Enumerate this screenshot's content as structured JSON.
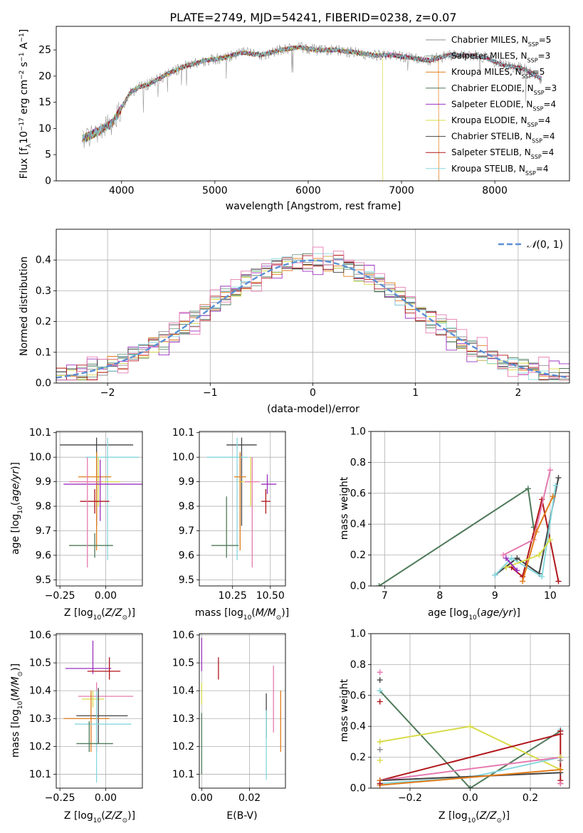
{
  "figure_title": "PLATE=2749, MJD=54241, FIBERID=0238, z=0.07",
  "colors": {
    "Chabrier MILES": "#7a9f88",
    "Salpeter MILES": "#8e8e8e",
    "Kroupa MILES": "#e07b1a",
    "Chabrier ELODIE": "#4f7a5a",
    "Salpeter ELODIE": "#9b30c0",
    "Kroupa ELODIE": "#d8dc4a",
    "Chabrier STELIB": "#444444",
    "Salpeter STELIB": "#b0161b",
    "Kroupa STELIB": "#86d8de",
    "pink": "#e57ab0",
    "normal_curve": "#5b8fd6"
  },
  "chart_data": [
    {
      "type": "line",
      "id": "spectrum",
      "title": "",
      "xlabel": "wavelength [Angstrom, rest frame]",
      "ylabel": "Flux [f_λ10^-17 erg cm^-2 s^-1 A^-1]",
      "xlim": [
        3300,
        8800
      ],
      "ylim": [
        0,
        29.5
      ],
      "xticks": [
        4000,
        5000,
        6000,
        7000,
        8000
      ],
      "yticks": [
        0,
        5,
        10,
        15,
        20,
        25
      ],
      "grid": false,
      "legend_position": "top-right",
      "series_continuum": {
        "x": [
          3580,
          3700,
          3800,
          3900,
          4000,
          4100,
          4200,
          4300,
          4500,
          4700,
          4900,
          5100,
          5300,
          5500,
          5700,
          5900,
          6100,
          6300,
          6500,
          6700,
          6900,
          7100,
          7300,
          7500,
          7700,
          7900,
          8100,
          8300,
          8500
        ],
        "y": [
          8,
          9,
          10,
          11,
          14,
          17,
          18,
          18.5,
          20.5,
          22,
          23,
          23.5,
          24.5,
          24,
          25,
          25.5,
          25,
          25,
          24.5,
          24,
          24,
          23.5,
          23,
          24,
          24,
          23.5,
          22,
          21.5,
          19.5
        ]
      },
      "series": [
        {
          "name": "Chabrier MILES, N_SSP=5"
        },
        {
          "name": "Salpeter MILES, N_SSP=3"
        },
        {
          "name": "Kroupa MILES, N_SSP=5"
        },
        {
          "name": "Chabrier ELODIE, N_SSP=3"
        },
        {
          "name": "Salpeter ELODIE, N_SSP=4"
        },
        {
          "name": "Kroupa ELODIE, N_SSP=4"
        },
        {
          "name": "Chabrier STELIB, N_SSP=4"
        },
        {
          "name": "Salpeter STELIB, N_SSP=4"
        },
        {
          "name": "Kroupa STELIB, N_SSP=4"
        }
      ]
    },
    {
      "type": "line",
      "id": "residual_hist",
      "xlabel": "(data-model)/error",
      "ylabel": "Normed distribution",
      "xlim": [
        -2.5,
        2.5
      ],
      "ylim": [
        0,
        0.5
      ],
      "xticks": [
        -2,
        -1,
        0,
        1,
        2
      ],
      "yticks": [
        0.0,
        0.1,
        0.2,
        0.3,
        0.4
      ],
      "grid": true,
      "legend_position": "top-right",
      "legend": "N(0,1)",
      "normal": {
        "mean": 0,
        "sigma": 1
      }
    },
    {
      "type": "scatter",
      "id": "z_vs_age",
      "xlabel": "Z [log10(Z/Z_sun)]",
      "ylabel": "age [log10(age/yr)]",
      "xlim": [
        -0.27,
        0.2
      ],
      "ylim": [
        9.475,
        10.105
      ],
      "xticks": [
        -0.25,
        0.0
      ],
      "yticks": [
        9.5,
        9.6,
        9.7,
        9.8,
        9.9,
        10.0,
        10.1
      ],
      "grid": true,
      "points": [
        {
          "color": "Chabrier STELIB",
          "x": -0.05,
          "xerr": [
            0.2,
            0.2
          ],
          "y": 10.05,
          "yerr": [
            0.33,
            0.03
          ]
        },
        {
          "color": "Kroupa STELIB",
          "x": 0.01,
          "xerr": [
            0.12,
            0.17
          ],
          "y": 10.0,
          "yerr": [
            0.42,
            0.08
          ]
        },
        {
          "color": "Kroupa ELODIE",
          "x": -0.04,
          "xerr": [
            0.12,
            0.12
          ],
          "y": 9.9,
          "yerr": [
            0.1,
            0.1
          ]
        },
        {
          "color": "Kroupa MILES",
          "x": -0.05,
          "xerr": [
            0.1,
            0.08
          ],
          "y": 9.92,
          "yerr": [
            0.3,
            0.1
          ]
        },
        {
          "color": "Salpeter ELODIE",
          "x": -0.03,
          "xerr": [
            0.2,
            0.23
          ],
          "y": 9.89,
          "yerr": [
            0.15,
            0.1
          ]
        },
        {
          "color": "Salpeter STELIB",
          "x": -0.06,
          "xerr": [
            0.08,
            0.08
          ],
          "y": 9.82,
          "yerr": [
            0.05,
            0.05
          ]
        },
        {
          "color": "Chabrier ELODIE",
          "x": -0.06,
          "xerr": [
            0.14,
            0.1
          ],
          "y": 9.64,
          "yerr": [
            0.05,
            0.05
          ]
        },
        {
          "color": "pink",
          "x": -0.1,
          "xerr": [
            0.1,
            0.08
          ],
          "y": 9.9,
          "yerr": [
            0.35,
            0.1
          ]
        }
      ]
    },
    {
      "type": "scatter",
      "id": "mass_vs_age",
      "xlabel": "mass [log10(M/M_sun)]",
      "ylabel": "",
      "xlim": [
        10.03,
        10.6
      ],
      "ylim": [
        9.475,
        10.105
      ],
      "xticks": [
        10.25,
        10.5
      ],
      "yticks": [
        9.5,
        9.6,
        9.7,
        9.8,
        9.9,
        10.0,
        10.1
      ],
      "grid": true,
      "points": [
        {
          "color": "Chabrier STELIB",
          "x": 10.31,
          "xerr": [
            0.1,
            0.1
          ],
          "y": 10.05,
          "yerr": [
            0.33,
            0.03
          ]
        },
        {
          "color": "Kroupa STELIB",
          "x": 10.28,
          "xerr": [
            0.2,
            0.07
          ],
          "y": 10.0,
          "yerr": [
            0.42,
            0.08
          ]
        },
        {
          "color": "Salpeter STELIB",
          "x": 10.47,
          "xerr": [
            0.03,
            0.03
          ],
          "y": 9.82,
          "yerr": [
            0.05,
            0.05
          ]
        },
        {
          "color": "Salpeter ELODIE",
          "x": 10.48,
          "xerr": [
            0.04,
            0.06
          ],
          "y": 9.89,
          "yerr": [
            0.04,
            0.04
          ]
        },
        {
          "color": "Kroupa ELODIE",
          "x": 10.37,
          "xerr": [
            0.08,
            0.04
          ],
          "y": 9.9,
          "yerr": [
            0.1,
            0.1
          ]
        },
        {
          "color": "Chabrier ELODIE",
          "x": 10.21,
          "xerr": [
            0.1,
            0.08
          ],
          "y": 9.64,
          "yerr": [
            0.05,
            0.2
          ]
        },
        {
          "color": "pink",
          "x": 10.38,
          "xerr": [
            0.05,
            0.05
          ],
          "y": 9.9,
          "yerr": [
            0.35,
            0.1
          ]
        },
        {
          "color": "Kroupa MILES",
          "x": 10.3,
          "xerr": [
            0.04,
            0.04
          ],
          "y": 9.92,
          "yerr": [
            0.3,
            0.1
          ]
        }
      ]
    },
    {
      "type": "line",
      "id": "age_vs_massweight",
      "xlabel": "age [log10(age/yr)]",
      "ylabel": "mass weight",
      "xlim": [
        6.75,
        10.35
      ],
      "ylim": [
        0.0,
        1.0
      ],
      "xticks": [
        7,
        8,
        9,
        10
      ],
      "yticks": [
        0.0,
        0.2,
        0.4,
        0.6,
        0.8,
        1.0
      ],
      "grid": true,
      "series": [
        {
          "color": "Chabrier ELODIE",
          "x": [
            6.9,
            9.6,
            9.7
          ],
          "y": [
            0.0,
            0.63,
            0.38
          ]
        },
        {
          "color": "Salpeter STELIB",
          "x": [
            9.3,
            9.5,
            9.85,
            10.15
          ],
          "y": [
            0.12,
            0.06,
            0.56,
            0.03
          ]
        },
        {
          "color": "Chabrier STELIB",
          "x": [
            9.0,
            9.4,
            9.8,
            10.15
          ],
          "y": [
            0.07,
            0.18,
            0.08,
            0.7
          ]
        },
        {
          "color": "Kroupa STELIB",
          "x": [
            9.0,
            9.3,
            9.85,
            10.1
          ],
          "y": [
            0.07,
            0.18,
            0.06,
            0.65
          ]
        },
        {
          "color": "pink",
          "x": [
            9.15,
            9.7,
            10.0
          ],
          "y": [
            0.2,
            0.3,
            0.75
          ]
        },
        {
          "color": "Kroupa MILES",
          "x": [
            9.5,
            9.75,
            10.05
          ],
          "y": [
            0.03,
            0.35,
            0.58
          ]
        },
        {
          "color": "Kroupa ELODIE",
          "x": [
            9.2,
            9.8,
            10.0
          ],
          "y": [
            0.12,
            0.2,
            0.3
          ]
        },
        {
          "color": "Salpeter ELODIE",
          "x": [
            9.2,
            9.4
          ],
          "y": [
            0.18,
            0.1
          ]
        }
      ]
    },
    {
      "type": "scatter",
      "id": "z_vs_mass",
      "xlabel": "Z [log10(Z/Z_sun)]",
      "ylabel": "mass [log10(M/M_sun)]",
      "xlim": [
        -0.27,
        0.2
      ],
      "ylim": [
        10.05,
        10.605
      ],
      "xticks": [
        -0.25,
        0.0
      ],
      "yticks": [
        10.1,
        10.2,
        10.3,
        10.4,
        10.5,
        10.6
      ],
      "grid": true,
      "points": [
        {
          "color": "Salpeter ELODIE",
          "x": -0.07,
          "xerr": [
            0.15,
            0.1
          ],
          "y": 10.48,
          "yerr": [
            0.02,
            0.1
          ]
        },
        {
          "color": "Salpeter STELIB",
          "x": 0.02,
          "xerr": [
            0.12,
            0.06
          ],
          "y": 10.47,
          "yerr": [
            0.03,
            0.05
          ]
        },
        {
          "color": "pink",
          "x": -0.05,
          "xerr": [
            0.1,
            0.2
          ],
          "y": 10.38,
          "yerr": [
            0.2,
            0.05
          ]
        },
        {
          "color": "Kroupa ELODIE",
          "x": -0.07,
          "xerr": [
            0.06,
            0.06
          ],
          "y": 10.37,
          "yerr": [
            0.03,
            0.03
          ]
        },
        {
          "color": "Chabrier STELIB",
          "x": -0.04,
          "xerr": [
            0.12,
            0.16
          ],
          "y": 10.31,
          "yerr": [
            0.1,
            0.1
          ]
        },
        {
          "color": "Kroupa MILES",
          "x": -0.08,
          "xerr": [
            0.15,
            0.1
          ],
          "y": 10.3,
          "yerr": [
            0.12,
            0.1
          ]
        },
        {
          "color": "Kroupa STELIB",
          "x": -0.05,
          "xerr": [
            0.12,
            0.19
          ],
          "y": 10.28,
          "yerr": [
            0.21,
            0.12
          ]
        },
        {
          "color": "Chabrier ELODIE",
          "x": -0.09,
          "xerr": [
            0.07,
            0.13
          ],
          "y": 10.21,
          "yerr": [
            0.03,
            0.08
          ]
        }
      ]
    },
    {
      "type": "scatter",
      "id": "ebv_vs_mass",
      "xlabel": "E(B-V)",
      "ylabel": "",
      "xlim": [
        -0.001,
        0.035
      ],
      "ylim": [
        10.05,
        10.605
      ],
      "xticks": [
        0.0,
        0.02
      ],
      "yticks": [
        10.1,
        10.2,
        10.3,
        10.4,
        10.5,
        10.6
      ],
      "grid": true,
      "points": [
        {
          "color": "Salpeter ELODIE",
          "x": 0.0,
          "y": 10.52,
          "yerr": [
            0.05,
            0.07
          ]
        },
        {
          "color": "Salpeter STELIB",
          "x": 0.007,
          "y": 10.48,
          "yerr": [
            0.04,
            0.04
          ]
        },
        {
          "color": "Kroupa ELODIE",
          "x": 0.0,
          "y": 10.39,
          "yerr": [
            0.04,
            0.04
          ]
        },
        {
          "color": "Chabrier ELODIE",
          "x": 0.0,
          "y": 10.21,
          "yerr": [
            0.11,
            0.11
          ]
        },
        {
          "color": "Chabrier STELIB",
          "x": 0.027,
          "y": 10.31,
          "yerr": [
            0.08,
            0.08
          ]
        },
        {
          "color": "Kroupa STELIB",
          "x": 0.027,
          "y": 10.28,
          "yerr": [
            0.2,
            0.05
          ]
        },
        {
          "color": "pink",
          "x": 0.03,
          "y": 10.37,
          "yerr": [
            0.12,
            0.12
          ]
        },
        {
          "color": "Kroupa MILES",
          "x": 0.033,
          "y": 10.3,
          "yerr": [
            0.12,
            0.1
          ]
        }
      ]
    },
    {
      "type": "line",
      "id": "z_vs_massweight",
      "xlabel": "Z [log10(Z/Z_sun)]",
      "ylabel": "mass weight",
      "xlim": [
        -0.33,
        0.33
      ],
      "ylim": [
        0.0,
        1.0
      ],
      "xticks": [
        -0.2,
        0.0,
        0.2
      ],
      "yticks": [
        0.0,
        0.2,
        0.4,
        0.6,
        0.8,
        1.0
      ],
      "grid": true,
      "series": [
        {
          "color": "Chabrier ELODIE",
          "x": [
            -0.3,
            0.0,
            0.3
          ],
          "y": [
            0.63,
            0.0,
            0.37
          ]
        },
        {
          "color": "Kroupa ELODIE",
          "x": [
            -0.3,
            0.0,
            0.3
          ],
          "y": [
            0.3,
            0.4,
            0.12
          ]
        },
        {
          "color": "Salpeter STELIB",
          "x": [
            -0.3,
            0.3,
            0.3
          ],
          "y": [
            0.05,
            0.35,
            0.03
          ]
        },
        {
          "color": "Kroupa STELIB",
          "x": [
            -0.3,
            0.0,
            0.3
          ],
          "y": [
            0.03,
            0.07,
            0.2
          ]
        },
        {
          "color": "pink",
          "x": [
            -0.3,
            0.3
          ],
          "y": [
            0.05,
            0.2
          ]
        },
        {
          "color": "Chabrier STELIB",
          "x": [
            -0.3,
            0.3
          ],
          "y": [
            0.05,
            0.1
          ]
        },
        {
          "color": "Kroupa MILES",
          "x": [
            -0.3,
            0.3
          ],
          "y": [
            0.02,
            0.12
          ]
        }
      ],
      "endpoint_markers_left": [
        0.75,
        0.7,
        0.63,
        0.56,
        0.3,
        0.25,
        0.18,
        0.05,
        0.03
      ],
      "endpoint_markers_right": [
        0.38,
        0.37,
        0.2,
        0.18,
        0.12,
        0.12,
        0.05,
        0.03
      ]
    }
  ]
}
